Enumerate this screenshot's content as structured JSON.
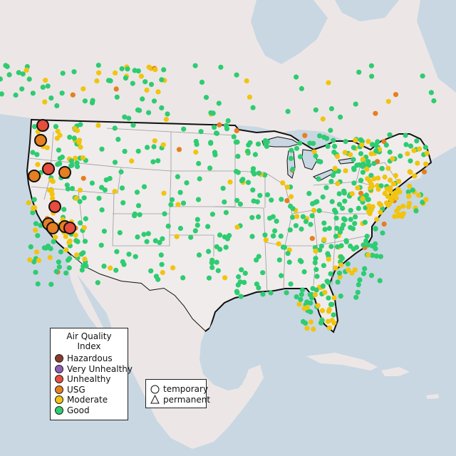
{
  "legend": {
    "title": "Air Quality Index",
    "categories": [
      {
        "label": "Hazardous",
        "color": "#8b3a2e"
      },
      {
        "label": "Very Unhealthy",
        "color": "#8e5bb5"
      },
      {
        "label": "Unhealthy",
        "color": "#e74c3c"
      },
      {
        "label": "USG",
        "color": "#e67e22"
      },
      {
        "label": "Moderate",
        "color": "#f1c40f"
      },
      {
        "label": "Good",
        "color": "#2ecc71"
      }
    ]
  },
  "site_type_legend": {
    "items": [
      {
        "label": "temporary",
        "shape": "circle"
      },
      {
        "label": "permanent",
        "shape": "triangle"
      }
    ]
  },
  "colors": {
    "land": "#f0ecec",
    "neighbor_land": "#ece7e6",
    "water": "#c9d7e3",
    "border": "#111111",
    "state_lines": "#9a9a9a",
    "no_data_marker": "#bbbbbb"
  }
}
